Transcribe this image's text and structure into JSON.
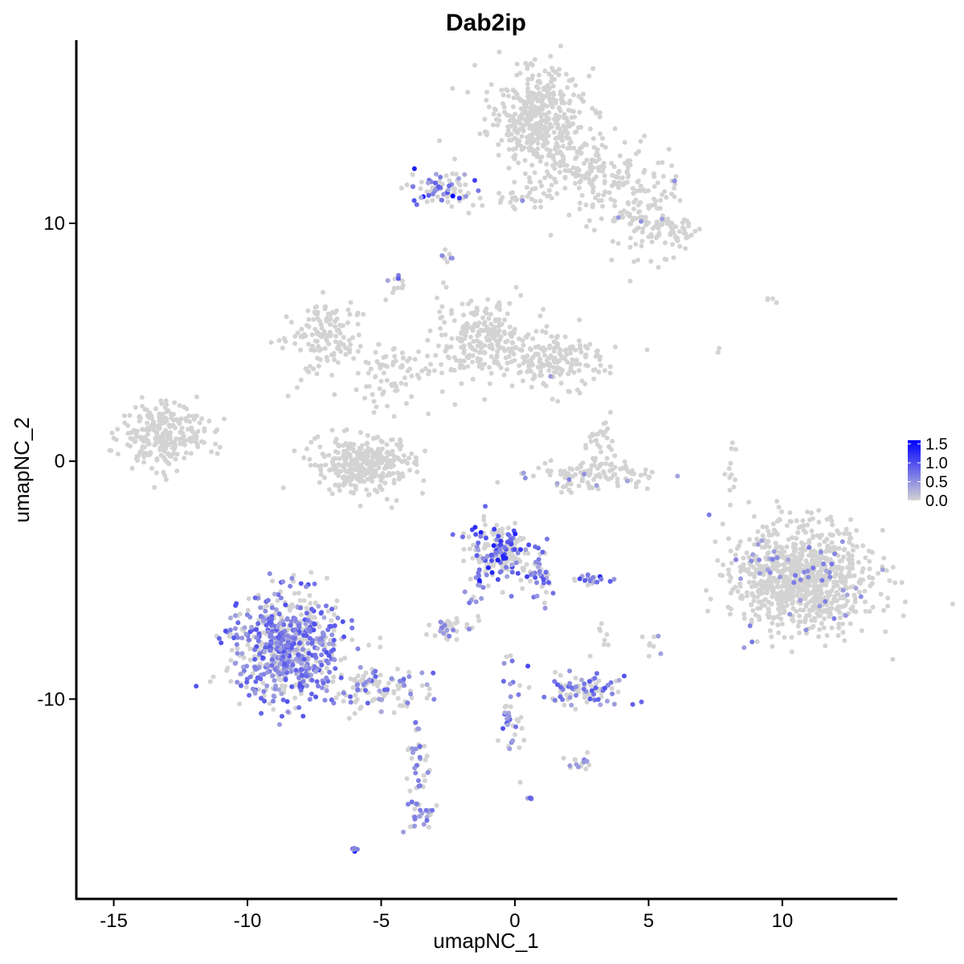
{
  "chart_data": {
    "type": "scatter",
    "title": "Dab2ip",
    "xlabel": "umapNC_1",
    "ylabel": "umapNC_2",
    "xlim": [
      -16.4,
      14.3
    ],
    "ylim": [
      -18.4,
      17.7
    ],
    "x_ticks": [
      -15,
      -10,
      -5,
      0,
      5,
      10
    ],
    "x_tick_labels": [
      "-15",
      "-10",
      "-5",
      "0",
      "5",
      "10"
    ],
    "y_ticks": [
      -10,
      0,
      10
    ],
    "y_tick_labels": [
      "-10",
      "0",
      "10"
    ],
    "grid": false,
    "legend": {
      "placement": "right",
      "type": "colorbar",
      "labels": [
        "1.5",
        "1.0",
        "0.5",
        "0.0"
      ],
      "values": [
        1.5,
        1.0,
        0.5,
        0.0
      ],
      "low_color": "#d3d3d3",
      "high_color": "#0000ff",
      "range": [
        0,
        1.6
      ]
    },
    "clusters": [
      {
        "cx": 0.8,
        "cy": 14.4,
        "sx": 0.9,
        "sy": 1.1,
        "n": 420,
        "expr_frac": 0.0,
        "max_expr": 0.0
      },
      {
        "cx": 2.7,
        "cy": 12.2,
        "sx": 1.2,
        "sy": 0.8,
        "n": 160,
        "expr_frac": 0.0,
        "max_expr": 0.0
      },
      {
        "cx": 4.6,
        "cy": 10.4,
        "sx": 0.9,
        "sy": 1.0,
        "n": 120,
        "expr_frac": 0.02,
        "max_expr": 0.6
      },
      {
        "cx": 5.8,
        "cy": 9.7,
        "sx": 0.5,
        "sy": 0.3,
        "n": 50,
        "expr_frac": 0.0,
        "max_expr": 0.0
      },
      {
        "cx": -2.8,
        "cy": 11.4,
        "sx": 0.6,
        "sy": 0.4,
        "n": 70,
        "expr_frac": 0.45,
        "max_expr": 1.6
      },
      {
        "cx": -0.5,
        "cy": 11.0,
        "sx": 0.9,
        "sy": 0.2,
        "n": 30,
        "expr_frac": 0.05,
        "max_expr": 0.6
      },
      {
        "cx": -2.7,
        "cy": 8.7,
        "sx": 0.2,
        "sy": 0.2,
        "n": 8,
        "expr_frac": 0.2,
        "max_expr": 0.7
      },
      {
        "cx": -4.4,
        "cy": 7.3,
        "sx": 0.2,
        "sy": 0.3,
        "n": 12,
        "expr_frac": 0.3,
        "max_expr": 1.0
      },
      {
        "cx": -13.2,
        "cy": 1.1,
        "sx": 0.8,
        "sy": 0.7,
        "n": 250,
        "expr_frac": 0.0,
        "max_expr": 0.0
      },
      {
        "cx": -7.2,
        "cy": 5.2,
        "sx": 0.8,
        "sy": 0.7,
        "n": 130,
        "expr_frac": 0.0,
        "max_expr": 0.0
      },
      {
        "cx": -4.5,
        "cy": 3.8,
        "sx": 1.2,
        "sy": 0.7,
        "n": 90,
        "expr_frac": 0.01,
        "max_expr": 0.5
      },
      {
        "cx": -1.2,
        "cy": 5.3,
        "sx": 0.9,
        "sy": 0.8,
        "n": 220,
        "expr_frac": 0.0,
        "max_expr": 0.0
      },
      {
        "cx": 1.5,
        "cy": 4.2,
        "sx": 0.9,
        "sy": 0.6,
        "n": 170,
        "expr_frac": 0.01,
        "max_expr": 0.6
      },
      {
        "cx": -5.6,
        "cy": -0.1,
        "sx": 0.9,
        "sy": 0.6,
        "n": 320,
        "expr_frac": 0.0,
        "max_expr": 0.0
      },
      {
        "cx": 3.1,
        "cy": -0.6,
        "sx": 1.2,
        "sy": 0.3,
        "n": 110,
        "expr_frac": 0.03,
        "max_expr": 0.6
      },
      {
        "cx": 3.2,
        "cy": 0.9,
        "sx": 0.3,
        "sy": 0.5,
        "n": 30,
        "expr_frac": 0.0,
        "max_expr": 0.0
      },
      {
        "cx": 10.8,
        "cy": -5.0,
        "sx": 1.3,
        "sy": 1.1,
        "n": 900,
        "expr_frac": 0.04,
        "max_expr": 0.7
      },
      {
        "cx": 8.1,
        "cy": -0.6,
        "sx": 0.15,
        "sy": 1.2,
        "n": 14,
        "expr_frac": 0.0,
        "max_expr": 0.0
      },
      {
        "cx": -8.6,
        "cy": -7.8,
        "sx": 1.0,
        "sy": 1.1,
        "n": 700,
        "expr_frac": 0.55,
        "max_expr": 1.0
      },
      {
        "cx": -5.4,
        "cy": -9.6,
        "sx": 1.0,
        "sy": 0.5,
        "n": 110,
        "expr_frac": 0.35,
        "max_expr": 0.9
      },
      {
        "cx": -3.7,
        "cy": -12.6,
        "sx": 0.2,
        "sy": 1.5,
        "n": 45,
        "expr_frac": 0.45,
        "max_expr": 0.8
      },
      {
        "cx": -3.4,
        "cy": -14.9,
        "sx": 0.25,
        "sy": 0.4,
        "n": 22,
        "expr_frac": 0.6,
        "max_expr": 0.8
      },
      {
        "cx": -6.0,
        "cy": -16.3,
        "sx": 0.06,
        "sy": 0.05,
        "n": 6,
        "expr_frac": 1.0,
        "max_expr": 1.6
      },
      {
        "cx": -0.5,
        "cy": -3.8,
        "sx": 0.6,
        "sy": 0.6,
        "n": 200,
        "expr_frac": 0.4,
        "max_expr": 1.4
      },
      {
        "cx": 1.0,
        "cy": -4.9,
        "sx": 0.25,
        "sy": 0.6,
        "n": 35,
        "expr_frac": 0.5,
        "max_expr": 1.0
      },
      {
        "cx": -1.5,
        "cy": -5.7,
        "sx": 0.25,
        "sy": 0.6,
        "n": 15,
        "expr_frac": 0.7,
        "max_expr": 0.9
      },
      {
        "cx": -2.5,
        "cy": -7.0,
        "sx": 0.35,
        "sy": 0.25,
        "n": 40,
        "expr_frac": 0.2,
        "max_expr": 0.7
      },
      {
        "cx": 2.8,
        "cy": -5.0,
        "sx": 0.4,
        "sy": 0.1,
        "n": 20,
        "expr_frac": 0.7,
        "max_expr": 1.3
      },
      {
        "cx": 2.5,
        "cy": -9.6,
        "sx": 0.7,
        "sy": 0.3,
        "n": 90,
        "expr_frac": 0.45,
        "max_expr": 1.0
      },
      {
        "cx": -0.1,
        "cy": -10.9,
        "sx": 0.3,
        "sy": 1.2,
        "n": 40,
        "expr_frac": 0.55,
        "max_expr": 1.1
      },
      {
        "cx": 2.4,
        "cy": -12.6,
        "sx": 0.25,
        "sy": 0.2,
        "n": 16,
        "expr_frac": 0.3,
        "max_expr": 0.8
      },
      {
        "cx": 0.6,
        "cy": -14.2,
        "sx": 0.05,
        "sy": 0.05,
        "n": 4,
        "expr_frac": 1.0,
        "max_expr": 0.9
      },
      {
        "cx": 5.1,
        "cy": -7.5,
        "sx": 0.15,
        "sy": 0.3,
        "n": 8,
        "expr_frac": 0.2,
        "max_expr": 0.6
      },
      {
        "cx": 3.3,
        "cy": -7.6,
        "sx": 0.2,
        "sy": 0.3,
        "n": 8,
        "expr_frac": 0.0,
        "max_expr": 0.0
      },
      {
        "cx": 9.6,
        "cy": 6.7,
        "sx": 0.2,
        "sy": 0.05,
        "n": 4,
        "expr_frac": 0.0,
        "max_expr": 0.0
      },
      {
        "cx": 7.5,
        "cy": 4.8,
        "sx": 0.1,
        "sy": 0.2,
        "n": 2,
        "expr_frac": 0.0,
        "max_expr": 0.0
      }
    ]
  }
}
